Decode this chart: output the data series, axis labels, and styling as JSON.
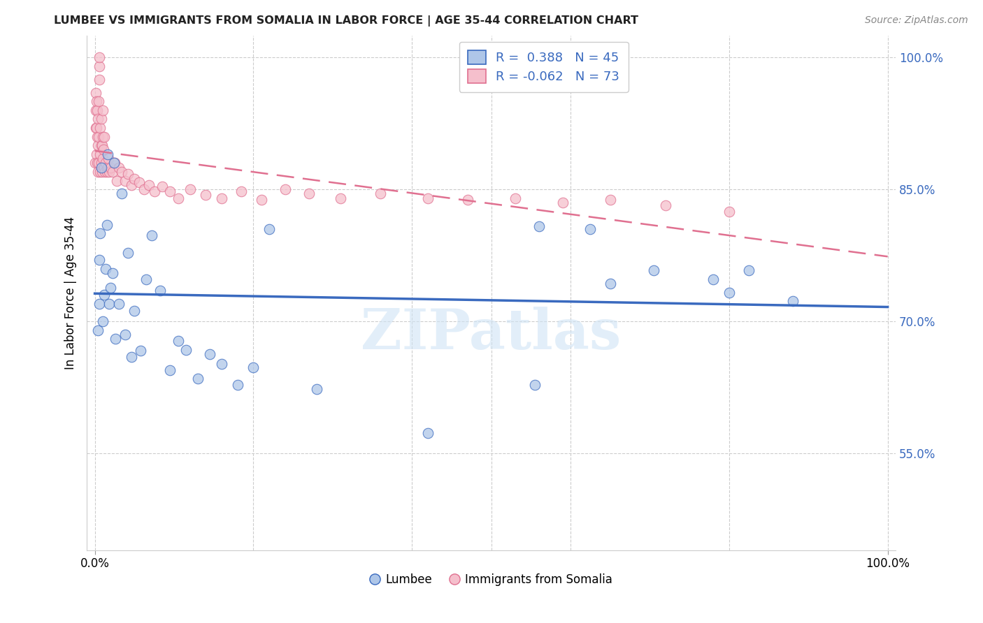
{
  "title": "LUMBEE VS IMMIGRANTS FROM SOMALIA IN LABOR FORCE | AGE 35-44 CORRELATION CHART",
  "source": "Source: ZipAtlas.com",
  "ylabel": "In Labor Force | Age 35-44",
  "watermark": "ZIPatlas",
  "lumbee_R": 0.388,
  "lumbee_N": 45,
  "somalia_R": -0.062,
  "somalia_N": 73,
  "xlim": [
    -0.01,
    1.01
  ],
  "ylim": [
    0.44,
    1.025
  ],
  "yticks": [
    0.55,
    0.7,
    0.85,
    1.0
  ],
  "yticklabels": [
    "55.0%",
    "70.0%",
    "85.0%",
    "100.0%"
  ],
  "lumbee_color": "#aec6e8",
  "somalia_color": "#f5bfcc",
  "lumbee_line_color": "#3a6abf",
  "somalia_line_color": "#e07090",
  "lumbee_x": [
    0.004,
    0.006,
    0.006,
    0.007,
    0.008,
    0.01,
    0.012,
    0.014,
    0.015,
    0.016,
    0.018,
    0.02,
    0.022,
    0.024,
    0.026,
    0.03,
    0.034,
    0.038,
    0.042,
    0.046,
    0.05,
    0.058,
    0.065,
    0.072,
    0.082,
    0.095,
    0.105,
    0.115,
    0.13,
    0.145,
    0.16,
    0.18,
    0.2,
    0.22,
    0.28,
    0.42,
    0.555,
    0.56,
    0.625,
    0.65,
    0.705,
    0.78,
    0.8,
    0.825,
    0.88
  ],
  "lumbee_y": [
    0.69,
    0.72,
    0.77,
    0.8,
    0.875,
    0.7,
    0.73,
    0.76,
    0.81,
    0.89,
    0.72,
    0.738,
    0.755,
    0.88,
    0.68,
    0.72,
    0.845,
    0.685,
    0.778,
    0.66,
    0.712,
    0.667,
    0.748,
    0.798,
    0.735,
    0.645,
    0.678,
    0.668,
    0.635,
    0.663,
    0.652,
    0.628,
    0.648,
    0.805,
    0.623,
    0.573,
    0.628,
    0.808,
    0.805,
    0.743,
    0.758,
    0.748,
    0.733,
    0.758,
    0.723
  ],
  "somalia_x": [
    0.0,
    0.001,
    0.001,
    0.001,
    0.002,
    0.002,
    0.002,
    0.003,
    0.003,
    0.003,
    0.004,
    0.004,
    0.004,
    0.005,
    0.005,
    0.005,
    0.006,
    0.006,
    0.006,
    0.007,
    0.007,
    0.007,
    0.008,
    0.008,
    0.008,
    0.009,
    0.009,
    0.01,
    0.01,
    0.01,
    0.011,
    0.011,
    0.012,
    0.012,
    0.013,
    0.014,
    0.015,
    0.016,
    0.017,
    0.018,
    0.02,
    0.022,
    0.025,
    0.028,
    0.03,
    0.034,
    0.038,
    0.042,
    0.046,
    0.05,
    0.056,
    0.062,
    0.068,
    0.075,
    0.085,
    0.095,
    0.105,
    0.12,
    0.14,
    0.16,
    0.185,
    0.21,
    0.24,
    0.27,
    0.31,
    0.36,
    0.42,
    0.47,
    0.53,
    0.59,
    0.65,
    0.72,
    0.8
  ],
  "somalia_y": [
    0.88,
    0.92,
    0.94,
    0.96,
    0.89,
    0.92,
    0.95,
    0.88,
    0.91,
    0.94,
    0.87,
    0.9,
    0.93,
    0.88,
    0.91,
    0.95,
    0.975,
    0.99,
    1.0,
    0.87,
    0.89,
    0.92,
    0.88,
    0.9,
    0.93,
    0.87,
    0.9,
    0.885,
    0.91,
    0.94,
    0.875,
    0.895,
    0.875,
    0.91,
    0.87,
    0.88,
    0.87,
    0.875,
    0.885,
    0.87,
    0.875,
    0.87,
    0.88,
    0.86,
    0.875,
    0.87,
    0.86,
    0.868,
    0.855,
    0.862,
    0.858,
    0.85,
    0.855,
    0.848,
    0.853,
    0.848,
    0.84,
    0.85,
    0.844,
    0.84,
    0.848,
    0.838,
    0.85,
    0.845,
    0.84,
    0.845,
    0.84,
    0.838,
    0.84,
    0.835,
    0.838,
    0.832,
    0.825
  ]
}
